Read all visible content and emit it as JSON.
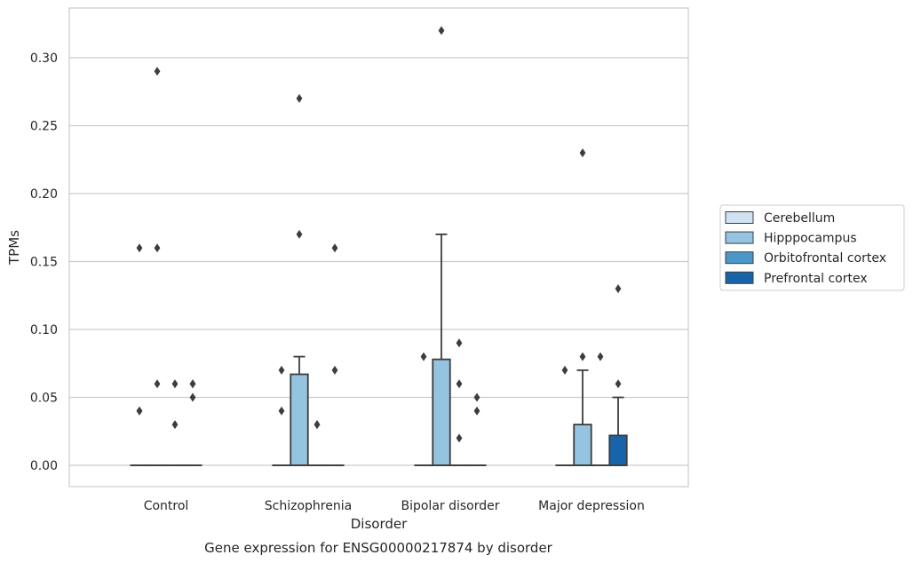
{
  "chart_data": {
    "type": "box",
    "caption": "Gene expression for ENSG00000217874 by disorder",
    "xlabel": "Disorder",
    "ylabel": "TPMs",
    "ylim": [
      -0.016,
      0.337
    ],
    "yticks": [
      "0.00",
      "0.05",
      "0.10",
      "0.15",
      "0.20",
      "0.25",
      "0.30"
    ],
    "ytick_values": [
      0.0,
      0.05,
      0.1,
      0.15,
      0.2,
      0.25,
      0.3
    ],
    "grid": true,
    "legend_position": "right",
    "categories": [
      "Control",
      "Schizophrenia",
      "Bipolar disorder",
      "Major depression"
    ],
    "series": [
      {
        "name": "Cerebellum",
        "color": "#d0e1f2",
        "boxes": [
          {
            "q1": 0,
            "median": 0,
            "q3": 0,
            "whislo": 0,
            "whishi": 0,
            "fliers": [
              0.04,
              0.04,
              0.16
            ]
          },
          {
            "q1": 0,
            "median": 0,
            "q3": 0,
            "whislo": 0,
            "whishi": 0,
            "fliers": [
              0.04,
              0.07
            ]
          },
          {
            "q1": 0,
            "median": 0,
            "q3": 0,
            "whislo": 0,
            "whishi": 0,
            "fliers": [
              0.08
            ]
          },
          {
            "q1": 0,
            "median": 0,
            "q3": 0,
            "whislo": 0,
            "whishi": 0,
            "fliers": [
              0.07
            ]
          }
        ]
      },
      {
        "name": "Hipppocampus",
        "color": "#94c4df",
        "boxes": [
          {
            "q1": 0,
            "median": 0,
            "q3": 0,
            "whislo": 0,
            "whishi": 0,
            "fliers": [
              0.06,
              0.16,
              0.29
            ]
          },
          {
            "q1": 0,
            "median": 0,
            "q3": 0.067,
            "whislo": 0,
            "whishi": 0.08,
            "fliers": [
              0.17,
              0.27
            ]
          },
          {
            "q1": 0,
            "median": 0,
            "q3": 0.078,
            "whislo": 0,
            "whishi": 0.17,
            "fliers": [
              0.32
            ]
          },
          {
            "q1": 0,
            "median": 0,
            "q3": 0.03,
            "whislo": 0,
            "whishi": 0.07,
            "fliers": [
              0.08,
              0.23
            ]
          }
        ]
      },
      {
        "name": "Orbitofrontal cortex",
        "color": "#4a98c9",
        "boxes": [
          {
            "q1": 0,
            "median": 0,
            "q3": 0,
            "whislo": 0,
            "whishi": 0,
            "fliers": [
              0.03,
              0.06
            ]
          },
          {
            "q1": 0,
            "median": 0,
            "q3": 0,
            "whislo": 0,
            "whishi": 0,
            "fliers": [
              0.03,
              0.03
            ]
          },
          {
            "q1": 0,
            "median": 0,
            "q3": 0,
            "whislo": 0,
            "whishi": 0,
            "fliers": [
              0.02,
              0.06,
              0.09
            ]
          },
          {
            "q1": 0,
            "median": 0,
            "q3": 0,
            "whislo": 0,
            "whishi": 0,
            "fliers": [
              0.08
            ]
          }
        ]
      },
      {
        "name": "Prefrontal cortex",
        "color": "#1764ab",
        "boxes": [
          {
            "q1": 0,
            "median": 0,
            "q3": 0,
            "whislo": 0,
            "whishi": 0,
            "fliers": [
              0.05,
              0.06,
              0.06
            ]
          },
          {
            "q1": 0,
            "median": 0,
            "q3": 0,
            "whislo": 0,
            "whishi": 0,
            "fliers": [
              0.07,
              0.16
            ]
          },
          {
            "q1": 0,
            "median": 0,
            "q3": 0,
            "whislo": 0,
            "whishi": 0,
            "fliers": [
              0.04,
              0.05
            ]
          },
          {
            "q1": 0,
            "median": 0,
            "q3": 0.022,
            "whislo": 0,
            "whishi": 0.05,
            "fliers": [
              0.06,
              0.13
            ]
          }
        ]
      }
    ],
    "colors": {
      "grid": "#cccccc",
      "frame": "#cccccc",
      "box_edge": "#3d3d3d",
      "legend_frame": "#cccccc"
    }
  }
}
